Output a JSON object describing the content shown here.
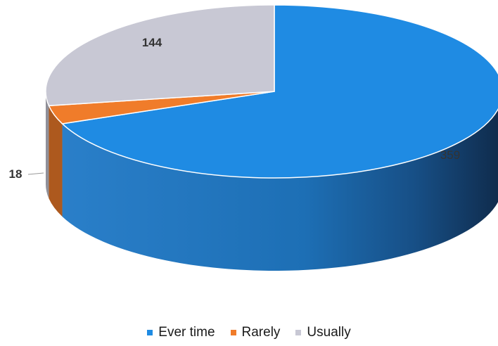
{
  "chart_data": {
    "type": "pie",
    "style": "3d",
    "categories": [
      "Ever time",
      "Rarely",
      "Usually"
    ],
    "values": [
      359,
      18,
      144
    ],
    "colors": [
      "#1f8be3",
      "#f07c2a",
      "#c8c8d4"
    ],
    "data_labels": [
      "359",
      "18",
      "144"
    ],
    "legend_position": "bottom",
    "title": ""
  }
}
